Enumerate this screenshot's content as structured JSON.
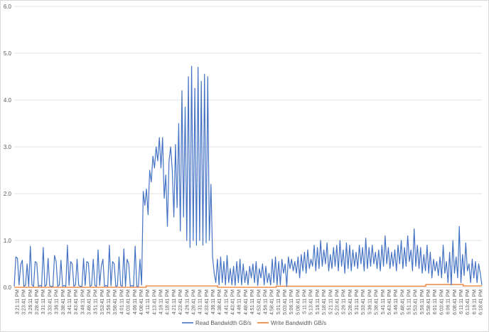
{
  "chart_data": {
    "type": "line",
    "title": "",
    "xlabel": "",
    "ylabel": "",
    "ylim": [
      0,
      6
    ],
    "y_ticks": [
      "0.0",
      "1.0",
      "2.0",
      "3.0",
      "4.0",
      "5.0",
      "6.0"
    ],
    "grid": "horizontal",
    "legend_position": "bottom",
    "x_tick_labels": [
      "3:21:11 PM",
      "3:23:41 PM",
      "3:26:11 PM",
      "3:28:41 PM",
      "3:31:11 PM",
      "3:33:41 PM",
      "3:36:11 PM",
      "3:38:41 PM",
      "3:41:11 PM",
      "3:43:41 PM",
      "3:46:11 PM",
      "3:48:41 PM",
      "3:51:11 PM",
      "3:53:41 PM",
      "3:56:11 PM",
      "3:58:41 PM",
      "4:01:11 PM",
      "4:03:41 PM",
      "4:06:11 PM",
      "4:08:41 PM",
      "4:11:11 PM",
      "4:13:41 PM",
      "4:16:11 PM",
      "4:18:41 PM",
      "4:21:11 PM",
      "4:23:41 PM",
      "4:26:11 PM",
      "4:28:41 PM",
      "4:31:11 PM",
      "4:33:41 PM",
      "4:36:11 PM",
      "4:38:41 PM",
      "4:41:11 PM",
      "4:43:41 PM",
      "4:46:11 PM",
      "4:48:41 PM",
      "4:51:11 PM",
      "4:53:41 PM",
      "4:56:11 PM",
      "4:58:41 PM",
      "5:01:11 PM",
      "5:03:41 PM",
      "5:06:11 PM",
      "5:08:41 PM",
      "5:11:11 PM",
      "5:13:41 PM",
      "5:16:11 PM",
      "5:18:41 PM",
      "5:21:11 PM",
      "5:23:41 PM",
      "5:26:11 PM",
      "5:28:41 PM",
      "5:31:11 PM",
      "5:33:41 PM",
      "5:36:11 PM",
      "5:38:41 PM",
      "5:41:11 PM",
      "5:43:41 PM",
      "5:46:11 PM",
      "5:48:41 PM",
      "5:51:11 PM",
      "5:53:41 PM",
      "5:56:11 PM",
      "5:58:41 PM",
      "6:01:11 PM",
      "6:03:41 PM",
      "6:06:11 PM",
      "6:08:41 PM",
      "6:11:11 PM",
      "6:13:41 PM",
      "6:16:11 PM",
      "6:18:41 PM"
    ],
    "series": [
      {
        "name": "Read Bandwidth GB/s",
        "color": "#4472c4",
        "values": [
          0.02,
          0.65,
          0.62,
          0.05,
          0.48,
          0.58,
          0.02,
          0.04,
          0.5,
          0.02,
          0.88,
          0.05,
          0.02,
          0.55,
          0.52,
          0.02,
          0.04,
          0.02,
          0.85,
          0.02,
          0.05,
          0.62,
          0.03,
          0.02,
          0.02,
          0.68,
          0.55,
          0.02,
          0.05,
          0.58,
          0.02,
          0.04,
          0.02,
          0.9,
          0.04,
          0.55,
          0.5,
          0.02,
          0.05,
          0.6,
          0.04,
          0.02,
          0.02,
          0.62,
          0.04,
          0.55,
          0.52,
          0.02,
          0.04,
          0.6,
          0.04,
          0.02,
          0.8,
          0.04,
          0.45,
          0.6,
          0.02,
          0.04,
          0.02,
          0.9,
          0.03,
          0.55,
          0.5,
          0.02,
          0.03,
          0.65,
          0.04,
          0.02,
          0.82,
          0.02,
          0.6,
          0.5,
          0.02,
          0.04,
          0.02,
          0.88,
          0.02,
          0.02,
          0.6,
          0.05,
          2.05,
          1.75,
          2.1,
          1.55,
          2.5,
          2.25,
          2.8,
          2.55,
          3.0,
          2.7,
          3.2,
          2.55,
          3.2,
          1.9,
          2.4,
          1.3,
          2.7,
          3.0,
          2.5,
          1.5,
          3.05,
          1.7,
          3.5,
          1.2,
          4.2,
          1.5,
          3.85,
          1.0,
          4.5,
          0.85,
          4.72,
          1.0,
          4.25,
          0.9,
          4.7,
          1.0,
          4.4,
          0.9,
          4.55,
          0.95,
          4.5,
          1.0,
          2.2,
          0.65,
          0.3,
          0.1,
          0.6,
          0.05,
          0.65,
          0.1,
          0.55,
          0.05,
          0.68,
          0.1,
          0.4,
          0.05,
          0.45,
          0.04,
          0.55,
          0.1,
          0.6,
          0.05,
          0.5,
          0.1,
          0.35,
          0.05,
          0.45,
          0.2,
          0.5,
          0.1,
          0.55,
          0.04,
          0.4,
          0.2,
          0.5,
          0.05,
          0.45,
          0.1,
          0.3,
          0.05,
          0.6,
          0.1,
          0.65,
          0.05,
          0.55,
          0.05,
          0.6,
          0.3,
          0.5,
          0.02,
          0.65,
          0.4,
          0.6,
          0.35,
          0.55,
          0.3,
          0.65,
          0.2,
          0.7,
          0.35,
          0.75,
          0.3,
          0.8,
          0.4,
          0.6,
          0.45,
          0.9,
          0.35,
          0.85,
          0.4,
          1.0,
          0.45,
          0.8,
          0.5,
          0.95,
          0.35,
          0.7,
          0.4,
          0.85,
          0.45,
          0.9,
          0.35,
          1.0,
          0.45,
          0.8,
          0.3,
          0.95,
          0.4,
          0.9,
          0.35,
          0.8,
          0.45,
          0.75,
          0.4,
          0.9,
          0.5,
          0.85,
          0.35,
          1.05,
          0.4,
          0.85,
          0.45,
          0.9,
          0.5,
          0.75,
          0.4,
          0.8,
          0.35,
          0.9,
          0.45,
          1.1,
          0.5,
          0.85,
          0.4,
          0.75,
          0.45,
          0.8,
          0.35,
          0.9,
          0.5,
          1.0,
          0.4,
          0.85,
          0.45,
          1.1,
          0.55,
          0.8,
          0.35,
          1.25,
          0.45,
          0.9,
          0.4,
          0.85,
          0.3,
          0.7,
          0.35,
          0.9,
          0.3,
          0.75,
          0.2,
          0.6,
          0.35,
          0.55,
          0.25,
          0.65,
          0.2,
          0.9,
          0.3,
          0.55,
          0.1,
          0.75,
          0.05,
          1.0,
          0.3,
          0.65,
          0.2,
          1.3,
          0.1,
          0.7,
          0.25,
          0.95,
          0.35,
          0.5,
          0.1,
          0.6,
          0.2,
          0.55,
          0.1,
          0.5,
          0.3,
          0.05
        ]
      },
      {
        "name": "Write Bandwidth GB/s",
        "color": "#ed7d31",
        "values_segments": [
          {
            "x_start_fraction": 0.0,
            "x_end_fraction": 0.282,
            "value": 0.0
          },
          {
            "x_start_fraction": 0.282,
            "x_end_fraction": 0.435,
            "value": 0.03
          },
          {
            "x_start_fraction": 0.435,
            "x_end_fraction": 0.56,
            "value": 0.0
          },
          {
            "x_start_fraction": 0.56,
            "x_end_fraction": 0.88,
            "value": 0.025
          },
          {
            "x_start_fraction": 0.88,
            "x_end_fraction": 0.96,
            "value": 0.06
          },
          {
            "x_start_fraction": 0.96,
            "x_end_fraction": 1.0,
            "value": 0.03
          }
        ]
      }
    ]
  }
}
